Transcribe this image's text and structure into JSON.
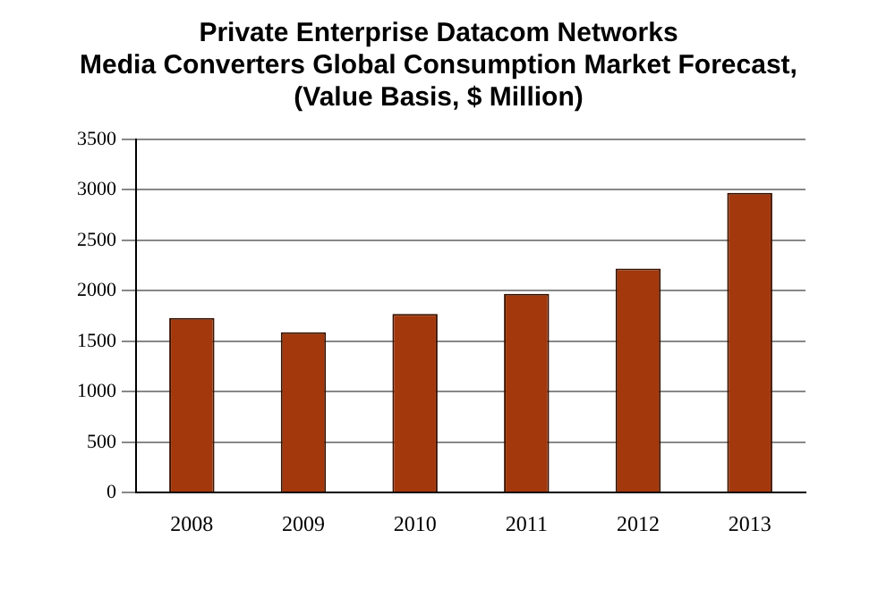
{
  "chart_data": {
    "type": "bar",
    "title": [
      "Private Enterprise Datacom Networks",
      "Media Converters Global Consumption Market Forecast,",
      "(Value Basis, $ Million)"
    ],
    "categories": [
      "2008",
      "2009",
      "2010",
      "2011",
      "2012",
      "2013"
    ],
    "values": [
      1730,
      1590,
      1770,
      1970,
      2220,
      2970
    ],
    "color": "#a3380c",
    "ylim": [
      0,
      3500
    ],
    "yticks": [
      0,
      500,
      1000,
      1500,
      2000,
      2500,
      3000,
      3500
    ],
    "grid": "y",
    "legend": false
  }
}
